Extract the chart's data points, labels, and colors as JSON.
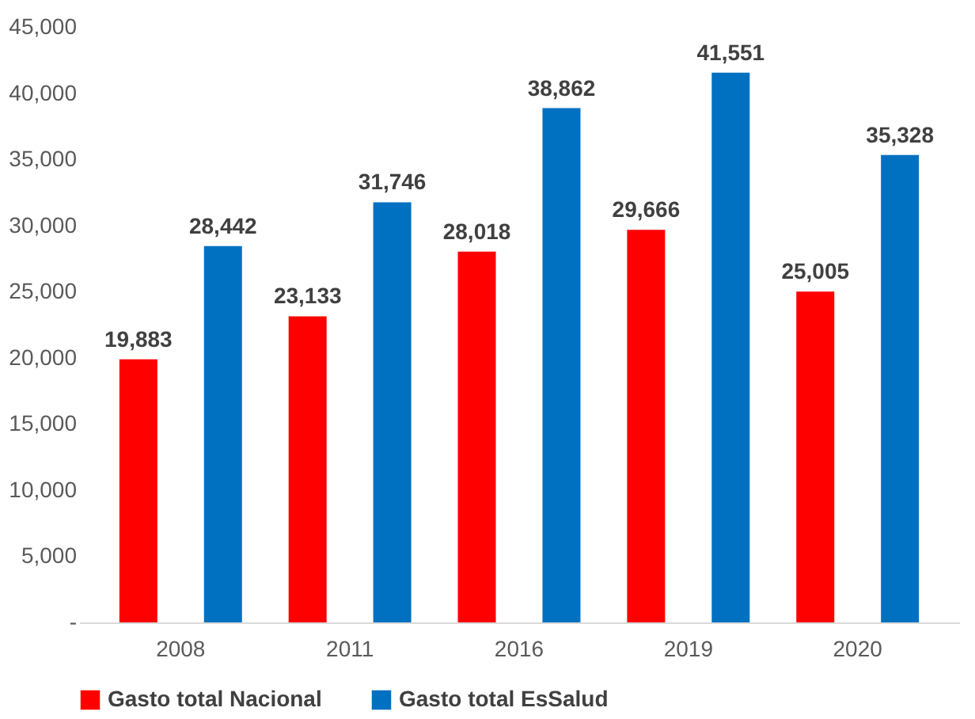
{
  "chart_data": {
    "type": "bar",
    "categories": [
      "2008",
      "2011",
      "2016",
      "2019",
      "2020"
    ],
    "series": [
      {
        "name": "Gasto total Nacional",
        "color": "#ff0000",
        "values": [
          19883,
          23133,
          28018,
          29666,
          25005
        ],
        "value_labels": [
          "19,883",
          "23,133",
          "28,018",
          "29,666",
          "25,005"
        ]
      },
      {
        "name": "Gasto total EsSalud",
        "color": "#0070c0",
        "values": [
          28442,
          31746,
          38862,
          41551,
          35328
        ],
        "value_labels": [
          "28,442",
          "31,746",
          "38,862",
          "41,551",
          "35,328"
        ]
      }
    ],
    "ylim": [
      0,
      45000
    ],
    "yticks": [
      {
        "value": 0,
        "label": "-"
      },
      {
        "value": 5000,
        "label": "5,000"
      },
      {
        "value": 10000,
        "label": "10,000"
      },
      {
        "value": 15000,
        "label": "15,000"
      },
      {
        "value": 20000,
        "label": "20,000"
      },
      {
        "value": 25000,
        "label": "25,000"
      },
      {
        "value": 30000,
        "label": "30,000"
      },
      {
        "value": 35000,
        "label": "35,000"
      },
      {
        "value": 40000,
        "label": "40,000"
      },
      {
        "value": 45000,
        "label": "45,000"
      }
    ],
    "grid": false,
    "legend": "bottom"
  }
}
